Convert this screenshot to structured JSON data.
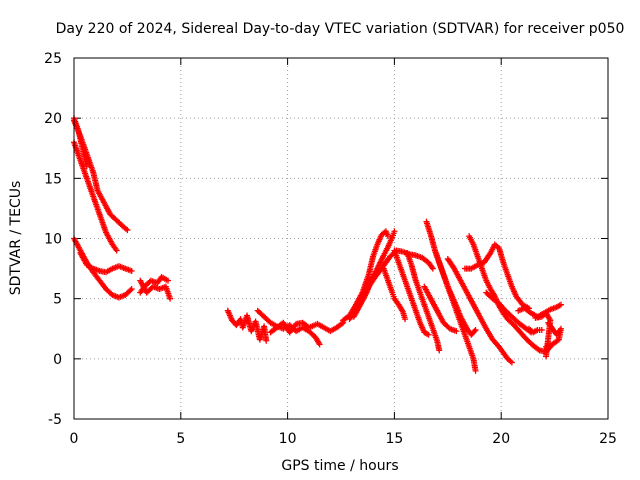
{
  "chart_data": {
    "type": "scatter",
    "title": "Day 220 of 2024, Sidereal Day-to-day VTEC variation (SDTVAR) for receiver p050",
    "xlabel": "GPS time / hours",
    "ylabel": "SDTVAR / TECUs",
    "xlim": [
      0,
      25
    ],
    "ylim": [
      -5,
      25
    ],
    "xticks": [
      0,
      5,
      10,
      15,
      20,
      25
    ],
    "yticks": [
      -5,
      0,
      5,
      10,
      15,
      20,
      25
    ],
    "grid": true,
    "marker": "+",
    "color": "#ff0000",
    "series": [
      {
        "name": "s1",
        "points": [
          [
            0.0,
            19.8
          ],
          [
            0.3,
            18.5
          ],
          [
            0.6,
            17.0
          ],
          [
            0.9,
            15.5
          ],
          [
            1.1,
            14.0
          ],
          [
            1.4,
            13.0
          ],
          [
            1.7,
            12.0
          ],
          [
            2.0,
            11.5
          ],
          [
            2.3,
            11.0
          ],
          [
            2.5,
            10.7
          ]
        ]
      },
      {
        "name": "s2",
        "points": [
          [
            0.0,
            18.0
          ],
          [
            0.3,
            16.5
          ],
          [
            0.6,
            15.0
          ],
          [
            0.9,
            13.5
          ],
          [
            1.2,
            12.0
          ],
          [
            1.5,
            10.5
          ],
          [
            1.8,
            9.5
          ],
          [
            2.0,
            9.0
          ]
        ]
      },
      {
        "name": "s3",
        "points": [
          [
            0.0,
            20.0
          ],
          [
            0.2,
            19.0
          ],
          [
            0.4,
            17.5
          ],
          [
            0.6,
            16.0
          ]
        ]
      },
      {
        "name": "s4",
        "points": [
          [
            0.0,
            10.0
          ],
          [
            0.3,
            9.0
          ],
          [
            0.6,
            8.0
          ],
          [
            0.9,
            7.2
          ],
          [
            1.2,
            6.5
          ],
          [
            1.5,
            5.8
          ],
          [
            1.8,
            5.3
          ],
          [
            2.1,
            5.1
          ],
          [
            2.4,
            5.3
          ],
          [
            2.7,
            5.8
          ]
        ]
      },
      {
        "name": "s5",
        "points": [
          [
            0.3,
            8.8
          ],
          [
            0.6,
            7.8
          ],
          [
            0.9,
            7.5
          ],
          [
            1.2,
            7.3
          ],
          [
            1.5,
            7.2
          ],
          [
            1.8,
            7.5
          ],
          [
            2.1,
            7.7
          ],
          [
            2.4,
            7.5
          ],
          [
            2.7,
            7.3
          ]
        ]
      },
      {
        "name": "s6",
        "points": [
          [
            3.1,
            5.5
          ],
          [
            3.3,
            6.0
          ],
          [
            3.6,
            6.5
          ],
          [
            3.9,
            6.3
          ],
          [
            4.1,
            6.8
          ],
          [
            4.4,
            6.5
          ]
        ]
      },
      {
        "name": "s7",
        "points": [
          [
            3.1,
            6.5
          ],
          [
            3.4,
            5.5
          ],
          [
            3.7,
            6.0
          ],
          [
            4.0,
            5.8
          ],
          [
            4.3,
            6.0
          ],
          [
            4.5,
            5.0
          ]
        ]
      },
      {
        "name": "s8",
        "points": [
          [
            7.2,
            4.0
          ],
          [
            7.4,
            3.2
          ],
          [
            7.6,
            2.8
          ],
          [
            7.8,
            3.3
          ],
          [
            7.9,
            2.6
          ],
          [
            8.1,
            3.6
          ],
          [
            8.3,
            2.3
          ],
          [
            8.5,
            3.1
          ],
          [
            8.7,
            1.6
          ],
          [
            8.9,
            2.7
          ],
          [
            9.0,
            1.5
          ]
        ]
      },
      {
        "name": "s9",
        "points": [
          [
            8.6,
            4.0
          ],
          [
            8.9,
            3.5
          ],
          [
            9.2,
            3.0
          ],
          [
            9.5,
            2.7
          ],
          [
            9.8,
            2.5
          ],
          [
            10.1,
            2.8
          ],
          [
            10.4,
            2.3
          ],
          [
            10.7,
            2.6
          ],
          [
            11.0,
            2.3
          ],
          [
            11.3,
            1.8
          ],
          [
            11.5,
            1.2
          ]
        ]
      },
      {
        "name": "s10",
        "points": [
          [
            9.2,
            2.2
          ],
          [
            9.5,
            2.6
          ],
          [
            9.8,
            3.0
          ],
          [
            10.1,
            2.2
          ],
          [
            10.4,
            2.9
          ],
          [
            10.7,
            3.0
          ],
          [
            11.0,
            2.6
          ],
          [
            11.4,
            2.9
          ],
          [
            11.7,
            2.6
          ],
          [
            12.0,
            2.3
          ],
          [
            12.3,
            2.6
          ],
          [
            12.6,
            3.0
          ]
        ]
      },
      {
        "name": "s11",
        "points": [
          [
            12.6,
            3.2
          ],
          [
            12.9,
            3.6
          ],
          [
            13.2,
            4.5
          ],
          [
            13.5,
            5.5
          ],
          [
            13.8,
            7.0
          ],
          [
            14.0,
            8.5
          ],
          [
            14.2,
            9.5
          ],
          [
            14.4,
            10.3
          ],
          [
            14.6,
            10.6
          ],
          [
            14.7,
            10.2
          ]
        ]
      },
      {
        "name": "s12",
        "points": [
          [
            12.9,
            3.3
          ],
          [
            13.2,
            4.0
          ],
          [
            13.5,
            5.0
          ],
          [
            13.8,
            6.0
          ],
          [
            14.1,
            6.8
          ],
          [
            14.4,
            7.5
          ],
          [
            14.6,
            8.0
          ],
          [
            14.8,
            8.5
          ],
          [
            15.1,
            9.0
          ],
          [
            15.4,
            8.9
          ],
          [
            15.7,
            8.7
          ],
          [
            16.0,
            8.6
          ],
          [
            16.3,
            8.4
          ],
          [
            16.6,
            8.0
          ],
          [
            16.8,
            7.5
          ]
        ]
      },
      {
        "name": "s13",
        "points": [
          [
            13.1,
            3.5
          ],
          [
            13.4,
            4.5
          ],
          [
            13.7,
            5.5
          ],
          [
            13.9,
            6.5
          ],
          [
            14.2,
            7.5
          ],
          [
            14.5,
            8.6
          ],
          [
            14.7,
            9.3
          ],
          [
            14.9,
            10.1
          ],
          [
            15.0,
            10.6
          ]
        ]
      },
      {
        "name": "s14",
        "points": [
          [
            14.5,
            7.5
          ],
          [
            14.7,
            6.5
          ],
          [
            14.9,
            5.5
          ],
          [
            15.0,
            5.0
          ],
          [
            15.2,
            4.5
          ],
          [
            15.4,
            3.9
          ],
          [
            15.5,
            3.3
          ]
        ]
      },
      {
        "name": "s15",
        "points": [
          [
            15.0,
            9.0
          ],
          [
            15.2,
            8.0
          ],
          [
            15.4,
            7.0
          ],
          [
            15.6,
            6.0
          ],
          [
            15.8,
            5.0
          ],
          [
            16.0,
            4.0
          ],
          [
            16.2,
            3.0
          ],
          [
            16.4,
            2.2
          ],
          [
            16.6,
            2.0
          ]
        ]
      },
      {
        "name": "s16",
        "points": [
          [
            15.6,
            8.8
          ],
          [
            15.8,
            7.8
          ],
          [
            16.0,
            6.5
          ],
          [
            16.2,
            5.5
          ],
          [
            16.4,
            4.5
          ],
          [
            16.6,
            3.5
          ],
          [
            16.8,
            2.5
          ],
          [
            17.0,
            1.5
          ],
          [
            17.1,
            0.7
          ]
        ]
      },
      {
        "name": "s17",
        "points": [
          [
            16.5,
            11.4
          ],
          [
            16.7,
            10.3
          ],
          [
            16.9,
            9.0
          ],
          [
            17.1,
            8.0
          ],
          [
            17.3,
            7.0
          ],
          [
            17.5,
            6.0
          ],
          [
            17.7,
            5.0
          ],
          [
            17.9,
            4.0
          ],
          [
            18.1,
            3.0
          ],
          [
            18.3,
            2.0
          ],
          [
            18.5,
            1.0
          ],
          [
            18.7,
            0.0
          ],
          [
            18.8,
            -1.0
          ]
        ]
      },
      {
        "name": "s18",
        "points": [
          [
            16.9,
            9.0
          ],
          [
            17.2,
            7.5
          ],
          [
            17.5,
            6.0
          ],
          [
            17.8,
            4.8
          ],
          [
            18.1,
            3.5
          ],
          [
            18.4,
            2.5
          ],
          [
            18.6,
            2.0
          ],
          [
            18.8,
            2.4
          ]
        ]
      },
      {
        "name": "s19",
        "points": [
          [
            16.4,
            6.0
          ],
          [
            16.7,
            5.0
          ],
          [
            17.0,
            4.0
          ],
          [
            17.3,
            3.0
          ],
          [
            17.6,
            2.5
          ],
          [
            17.9,
            2.3
          ]
        ]
      },
      {
        "name": "s20",
        "points": [
          [
            17.5,
            8.3
          ],
          [
            17.8,
            7.5
          ],
          [
            18.1,
            6.5
          ],
          [
            18.4,
            5.5
          ],
          [
            18.7,
            4.5
          ],
          [
            19.0,
            3.5
          ],
          [
            19.3,
            2.5
          ],
          [
            19.6,
            1.6
          ],
          [
            19.9,
            1.0
          ],
          [
            20.1,
            0.5
          ],
          [
            20.3,
            0.0
          ],
          [
            20.5,
            -0.3
          ]
        ]
      },
      {
        "name": "s21",
        "points": [
          [
            18.3,
            7.5
          ],
          [
            18.6,
            7.5
          ],
          [
            18.9,
            7.8
          ],
          [
            19.2,
            8.0
          ],
          [
            19.5,
            8.8
          ],
          [
            19.7,
            9.5
          ],
          [
            19.9,
            9.2
          ],
          [
            20.1,
            8.0
          ],
          [
            20.3,
            7.0
          ],
          [
            20.5,
            6.0
          ],
          [
            20.7,
            5.2
          ],
          [
            21.0,
            4.5
          ],
          [
            21.3,
            4.2
          ]
        ]
      },
      {
        "name": "s22",
        "points": [
          [
            19.3,
            5.5
          ],
          [
            19.6,
            5.0
          ],
          [
            19.9,
            4.6
          ],
          [
            20.2,
            4.0
          ],
          [
            20.5,
            3.5
          ],
          [
            20.8,
            3.0
          ],
          [
            21.1,
            2.6
          ],
          [
            21.4,
            2.2
          ]
        ]
      },
      {
        "name": "s23",
        "points": [
          [
            18.5,
            10.2
          ],
          [
            18.7,
            9.5
          ],
          [
            18.9,
            8.5
          ],
          [
            19.1,
            7.5
          ],
          [
            19.3,
            6.5
          ],
          [
            19.5,
            5.8
          ],
          [
            19.7,
            5.2
          ],
          [
            19.9,
            4.4
          ],
          [
            20.1,
            3.8
          ],
          [
            20.3,
            3.3
          ],
          [
            20.6,
            2.8
          ],
          [
            20.9,
            2.2
          ],
          [
            21.2,
            1.6
          ],
          [
            21.5,
            1.1
          ],
          [
            21.8,
            0.7
          ],
          [
            22.1,
            0.6
          ],
          [
            22.3,
            1.0
          ]
        ]
      },
      {
        "name": "s24",
        "points": [
          [
            20.8,
            4.0
          ],
          [
            21.1,
            4.2
          ],
          [
            21.4,
            3.8
          ],
          [
            21.7,
            3.5
          ],
          [
            22.0,
            3.8
          ],
          [
            22.3,
            4.1
          ],
          [
            22.6,
            4.3
          ],
          [
            22.8,
            4.5
          ]
        ]
      },
      {
        "name": "s25",
        "points": [
          [
            21.3,
            2.5
          ],
          [
            21.5,
            2.2
          ],
          [
            21.7,
            2.4
          ],
          [
            21.9,
            2.4
          ]
        ]
      },
      {
        "name": "s26",
        "points": [
          [
            22.1,
            1.0
          ],
          [
            22.4,
            1.2
          ],
          [
            22.7,
            1.6
          ],
          [
            22.8,
            2.5
          ],
          [
            22.6,
            2.0
          ],
          [
            22.2,
            3.0
          ]
        ]
      },
      {
        "name": "s27",
        "points": [
          [
            21.6,
            3.4
          ],
          [
            21.9,
            3.5
          ],
          [
            22.1,
            3.8
          ],
          [
            22.3,
            3.2
          ],
          [
            22.1,
            0.2
          ]
        ]
      }
    ]
  }
}
